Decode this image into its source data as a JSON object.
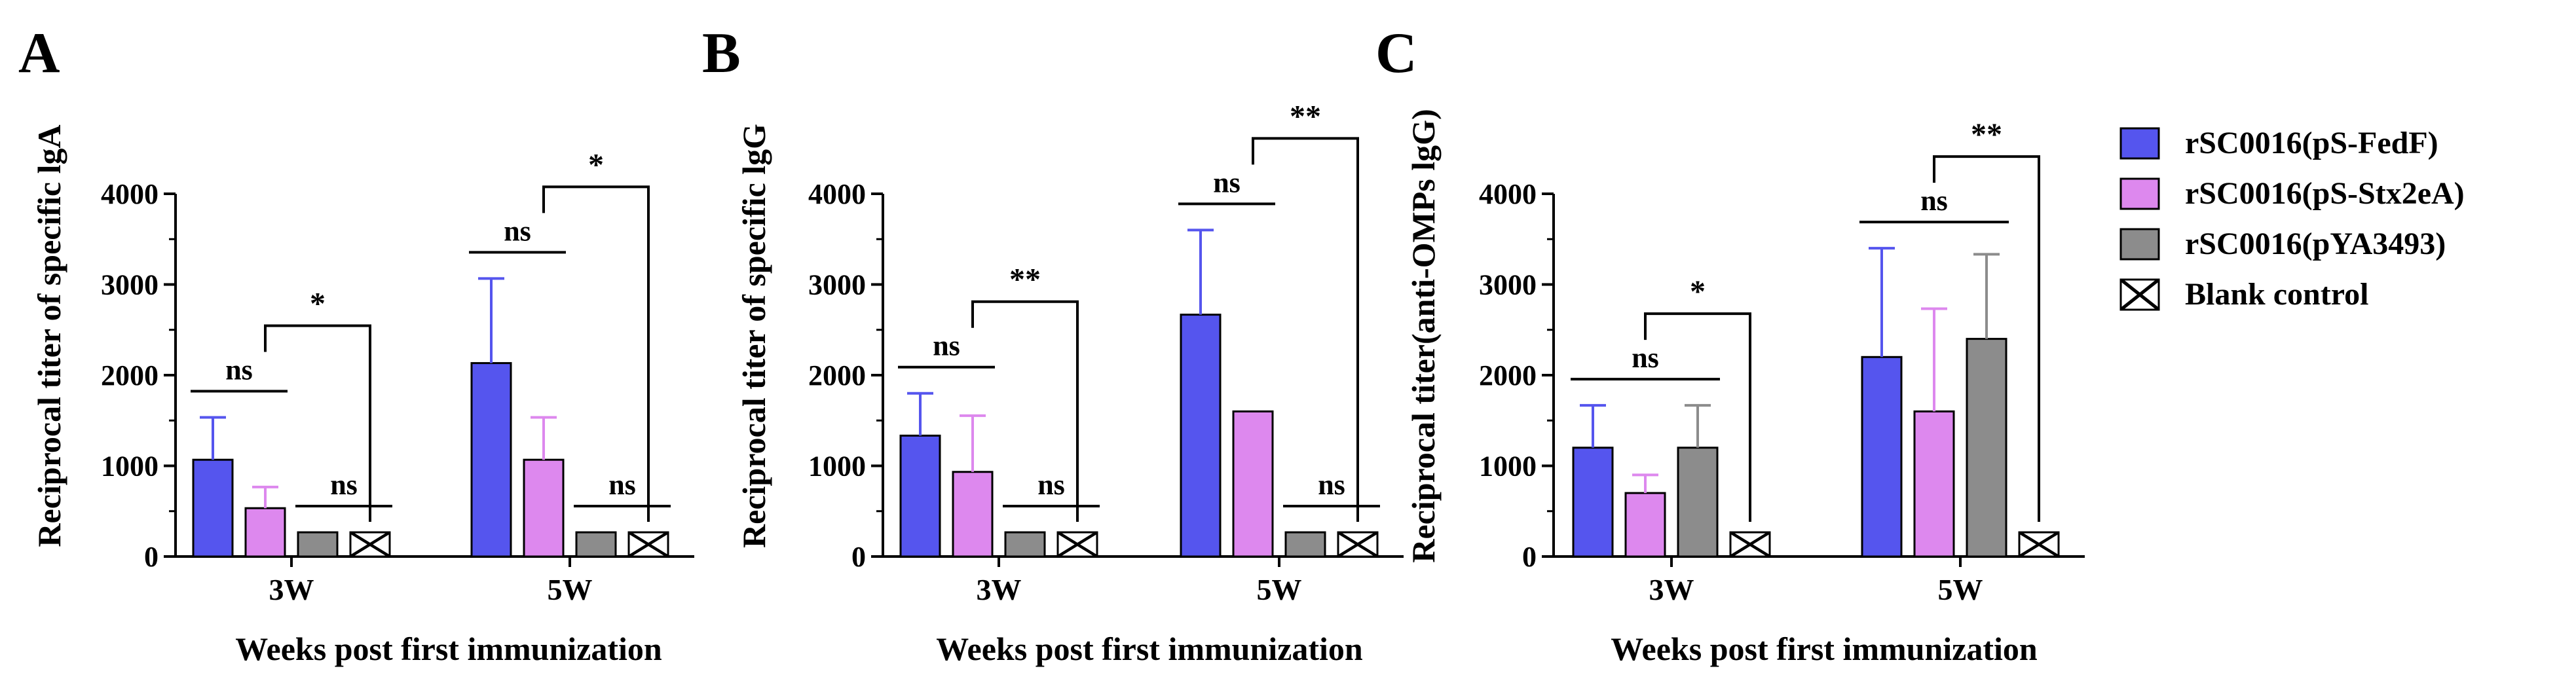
{
  "colors": {
    "fedf": "#5555ee",
    "stx2ea": "#dd88ee",
    "pya3493": "#8c8c8c",
    "blank": "#ffffff",
    "axis": "#000000"
  },
  "legend": {
    "items": [
      {
        "label": "rSC0016(pS-FedF)",
        "color": "#5555ee",
        "pattern": "solid"
      },
      {
        "label": "rSC0016(pS-Stx2eA)",
        "color": "#dd88ee",
        "pattern": "solid"
      },
      {
        "label": "rSC0016(pYA3493)",
        "color": "#8c8c8c",
        "pattern": "solid"
      },
      {
        "label": "Blank control",
        "color": "#ffffff",
        "pattern": "cross"
      }
    ]
  },
  "chart_data": [
    {
      "panel": "A",
      "type": "bar",
      "title": "",
      "xlabel": "Weeks post first immunization",
      "ylabel": "Reciprocal titer of specific lgA",
      "categories": [
        "3W",
        "5W"
      ],
      "yticks": [
        "0",
        "1000",
        "2000",
        "3000",
        "4000"
      ],
      "ylim": [
        0,
        4000
      ],
      "series": [
        {
          "name": "rSC0016(pS-FedF)",
          "values": [
            1067,
            2133
          ],
          "errors": [
            467,
            933
          ]
        },
        {
          "name": "rSC0016(pS-Stx2eA)",
          "values": [
            533,
            1067
          ],
          "errors": [
            233,
            467
          ]
        },
        {
          "name": "rSC0016(pYA3493)",
          "values": [
            267,
            267
          ],
          "errors": [
            0,
            0
          ]
        },
        {
          "name": "Blank control",
          "values": [
            267,
            267
          ],
          "errors": [
            0,
            0
          ]
        }
      ],
      "annotations": [
        {
          "text": "ns",
          "group": 0,
          "from": 0,
          "to": 1,
          "style": "line"
        },
        {
          "text": "*",
          "group": 0,
          "from": 1,
          "to": 3,
          "style": "bracket"
        },
        {
          "text": "ns",
          "group": 0,
          "from": 2,
          "to": 3,
          "style": "line"
        },
        {
          "text": "ns",
          "group": 1,
          "from": 0,
          "to": 1,
          "style": "line"
        },
        {
          "text": "*",
          "group": 1,
          "from": 1,
          "to": 3,
          "style": "bracket"
        },
        {
          "text": "ns",
          "group": 1,
          "from": 2,
          "to": 3,
          "style": "line"
        }
      ]
    },
    {
      "panel": "B",
      "type": "bar",
      "title": "",
      "xlabel": "Weeks post first immunization",
      "ylabel": "Reciprocal titer of specific lgG",
      "categories": [
        "3W",
        "5W"
      ],
      "yticks": [
        "0",
        "1000",
        "2000",
        "3000",
        "4000"
      ],
      "ylim": [
        0,
        4000
      ],
      "series": [
        {
          "name": "rSC0016(pS-FedF)",
          "values": [
            1333,
            2667
          ],
          "errors": [
            467,
            933
          ]
        },
        {
          "name": "rSC0016(pS-Stx2eA)",
          "values": [
            933,
            1600
          ],
          "errors": [
            620,
            0
          ]
        },
        {
          "name": "rSC0016(pYA3493)",
          "values": [
            267,
            267
          ],
          "errors": [
            0,
            0
          ]
        },
        {
          "name": "Blank control",
          "values": [
            267,
            267
          ],
          "errors": [
            0,
            0
          ]
        }
      ],
      "annotations": [
        {
          "text": "ns",
          "group": 0,
          "from": 0,
          "to": 1,
          "style": "line"
        },
        {
          "text": "**",
          "group": 0,
          "from": 1,
          "to": 3,
          "style": "bracket"
        },
        {
          "text": "ns",
          "group": 0,
          "from": 2,
          "to": 3,
          "style": "line"
        },
        {
          "text": "ns",
          "group": 1,
          "from": 0,
          "to": 1,
          "style": "line"
        },
        {
          "text": "**",
          "group": 1,
          "from": 1,
          "to": 3,
          "style": "bracket"
        },
        {
          "text": "ns",
          "group": 1,
          "from": 2,
          "to": 3,
          "style": "line"
        }
      ]
    },
    {
      "panel": "C",
      "type": "bar",
      "title": "",
      "xlabel": "Weeks post first immunization",
      "ylabel": "Reciprocal titer(anti-OMPs lgG)",
      "categories": [
        "3W",
        "5W"
      ],
      "yticks": [
        "0",
        "1000",
        "2000",
        "3000",
        "4000"
      ],
      "ylim": [
        0,
        4000
      ],
      "series": [
        {
          "name": "rSC0016(pS-FedF)",
          "values": [
            1200,
            2200
          ],
          "errors": [
            467,
            1200
          ]
        },
        {
          "name": "rSC0016(pS-Stx2eA)",
          "values": [
            700,
            1600
          ],
          "errors": [
            200,
            1133
          ]
        },
        {
          "name": "rSC0016(pYA3493)",
          "values": [
            1200,
            2400
          ],
          "errors": [
            467,
            933
          ]
        },
        {
          "name": "Blank control",
          "values": [
            267,
            267
          ],
          "errors": [
            0,
            0
          ]
        }
      ],
      "annotations": [
        {
          "text": "ns",
          "group": 0,
          "from": 0,
          "to": 2,
          "style": "line"
        },
        {
          "text": "*",
          "group": 0,
          "from": 1,
          "to": 3,
          "style": "bracket"
        },
        {
          "text": "ns",
          "group": 1,
          "from": 0,
          "to": 2,
          "style": "line"
        },
        {
          "text": "**",
          "group": 1,
          "from": 1,
          "to": 3,
          "style": "bracket"
        }
      ]
    }
  ]
}
